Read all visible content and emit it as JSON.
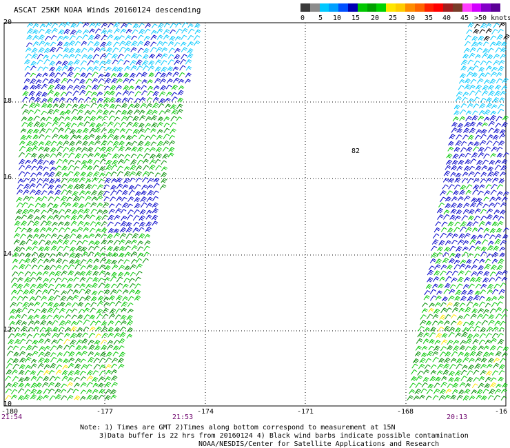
{
  "title": "ASCAT 25KM NOAA Winds 20160124 descending",
  "colorbar": {
    "labels": [
      "0",
      "5",
      "10",
      "15",
      "20",
      "25",
      "30",
      "35",
      "40",
      "45",
      ">50 knots"
    ],
    "colors": [
      "#3a3a3a",
      "#8c8c8c",
      "#00c8ff",
      "#00a0ff",
      "#0050ff",
      "#0000b4",
      "#00c800",
      "#00a000",
      "#00d200",
      "#ffe600",
      "#ffcc00",
      "#ff8c00",
      "#ff6400",
      "#ff2000",
      "#ff0000",
      "#a01e1e",
      "#783c28",
      "#ff3cff",
      "#d200ff",
      "#8200c8",
      "#5a0096"
    ]
  },
  "lat_labels": [
    "20",
    "18",
    "16",
    "14",
    "12",
    "10"
  ],
  "lon_labels": [
    "-180",
    "-177",
    "-174",
    "-171",
    "-168",
    "-16"
  ],
  "time_labels": [
    "21:54",
    "21:53",
    "20:13"
  ],
  "marker": "82",
  "notes": [
    "Note: 1) Times are GMT 2)Times along bottom correspond to measurement at 15N",
    "3)Data buffer is 22 hrs from 20160124 4) Black wind barbs indicate possible contamination",
    "NOAA/NESDIS/Center for Satellite Applications and Research"
  ],
  "wind_colors": {
    "light_blue": "#00c8ff",
    "blue": "#0000c8",
    "green": "#00c800",
    "dark_green": "#008c00",
    "yellow": "#ffe600",
    "black": "#000000"
  }
}
